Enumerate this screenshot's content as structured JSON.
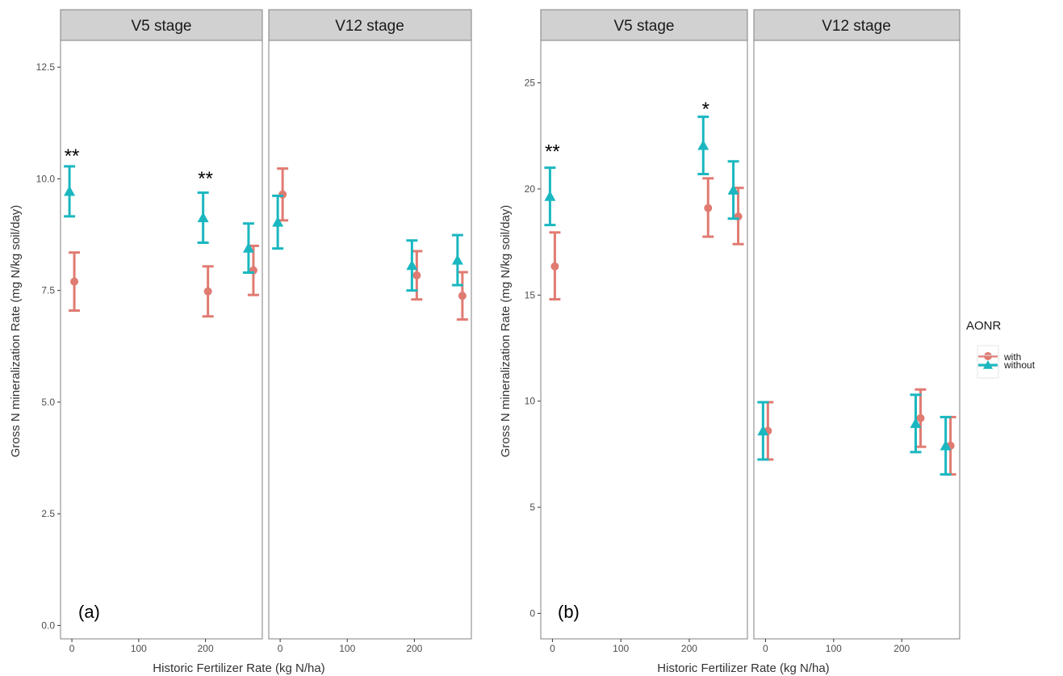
{
  "colors": {
    "with": "#e07b72",
    "without": "#1ab7c0",
    "strip": "#d1d1d1",
    "frame": "#808080"
  },
  "legend": {
    "title": "AONR",
    "entries": [
      {
        "key": "with",
        "label": "with",
        "marker": "circle"
      },
      {
        "key": "without",
        "label": "without",
        "marker": "triangle"
      }
    ]
  },
  "chart_data": [
    {
      "type": "scatter",
      "panel_label": "(a)",
      "xlabel": "Historic Fertilizer Rate (kg N/ha)",
      "ylabel": "Gross N mineralization Rate (mg N/kg soil/day)",
      "ylim": [
        -0.3,
        13.1
      ],
      "yticks": [
        "0.0",
        "2.5",
        "5.0",
        "7.5",
        "10.0",
        "12.5"
      ],
      "ytick_values": [
        0,
        2.5,
        5,
        7.5,
        10,
        12.5
      ],
      "xlim": [
        -17,
        285
      ],
      "xticks": [
        "0",
        "100",
        "200"
      ],
      "xtick_values": [
        0,
        100,
        200
      ],
      "facets": [
        {
          "label": "V5 stage",
          "series": [
            {
              "name": "with",
              "points": [
                {
                  "x": 0,
                  "y": 7.7,
                  "lo": 7.05,
                  "hi": 8.35
                },
                {
                  "x": 200,
                  "y": 7.48,
                  "lo": 6.92,
                  "hi": 8.04
                },
                {
                  "x": 268,
                  "y": 7.95,
                  "lo": 7.4,
                  "hi": 8.5
                }
              ]
            },
            {
              "name": "without",
              "points": [
                {
                  "x": 0,
                  "y": 9.72,
                  "lo": 9.16,
                  "hi": 10.28
                },
                {
                  "x": 200,
                  "y": 9.13,
                  "lo": 8.57,
                  "hi": 9.69
                },
                {
                  "x": 268,
                  "y": 8.45,
                  "lo": 7.9,
                  "hi": 9.0
                }
              ]
            }
          ],
          "annotations": [
            {
              "x": 0,
              "y": 10.62,
              "text": "**"
            },
            {
              "x": 200,
              "y": 10.12,
              "text": "**"
            }
          ]
        },
        {
          "label": "V12 stage",
          "series": [
            {
              "name": "with",
              "points": [
                {
                  "x": 0,
                  "y": 9.65,
                  "lo": 9.07,
                  "hi": 10.23
                },
                {
                  "x": 200,
                  "y": 7.84,
                  "lo": 7.3,
                  "hi": 8.38
                },
                {
                  "x": 268,
                  "y": 7.38,
                  "lo": 6.85,
                  "hi": 7.91
                }
              ]
            },
            {
              "name": "without",
              "points": [
                {
                  "x": 0,
                  "y": 9.03,
                  "lo": 8.44,
                  "hi": 9.62
                },
                {
                  "x": 200,
                  "y": 8.06,
                  "lo": 7.5,
                  "hi": 8.62
                },
                {
                  "x": 268,
                  "y": 8.18,
                  "lo": 7.62,
                  "hi": 8.74
                }
              ]
            }
          ],
          "annotations": []
        }
      ]
    },
    {
      "type": "scatter",
      "panel_label": "(b)",
      "xlabel": "Historic Fertilizer Rate (kg N/ha)",
      "ylabel": "Gross N mineralization Rate (mg N/kg soil/day)",
      "ylim": [
        -1.2,
        27.0
      ],
      "yticks": [
        "0",
        "5",
        "10",
        "15",
        "20",
        "25"
      ],
      "ytick_values": [
        0,
        5,
        10,
        15,
        20,
        25
      ],
      "xlim": [
        -17,
        285
      ],
      "xticks": [
        "0",
        "100",
        "200"
      ],
      "xtick_values": [
        0,
        100,
        200
      ],
      "facets": [
        {
          "label": "V5 stage",
          "series": [
            {
              "name": "with",
              "points": [
                {
                  "x": 0,
                  "y": 16.35,
                  "lo": 14.8,
                  "hi": 17.95
                },
                {
                  "x": 224,
                  "y": 19.1,
                  "lo": 17.75,
                  "hi": 20.5
                },
                {
                  "x": 268,
                  "y": 18.7,
                  "lo": 17.4,
                  "hi": 20.05
                }
              ]
            },
            {
              "name": "without",
              "points": [
                {
                  "x": 0,
                  "y": 19.65,
                  "lo": 18.3,
                  "hi": 21.0
                },
                {
                  "x": 224,
                  "y": 22.05,
                  "lo": 20.7,
                  "hi": 23.4
                },
                {
                  "x": 268,
                  "y": 19.95,
                  "lo": 18.6,
                  "hi": 21.3
                }
              ]
            }
          ],
          "annotations": [
            {
              "x": 0,
              "y": 22.0,
              "text": "**"
            },
            {
              "x": 224,
              "y": 24.0,
              "text": "*"
            }
          ]
        },
        {
          "label": "V12 stage",
          "series": [
            {
              "name": "with",
              "points": [
                {
                  "x": 0,
                  "y": 8.6,
                  "lo": 7.25,
                  "hi": 9.95
                },
                {
                  "x": 224,
                  "y": 9.2,
                  "lo": 7.85,
                  "hi": 10.55
                },
                {
                  "x": 268,
                  "y": 7.9,
                  "lo": 6.55,
                  "hi": 9.25
                }
              ]
            },
            {
              "name": "without",
              "points": [
                {
                  "x": 0,
                  "y": 8.6,
                  "lo": 7.25,
                  "hi": 9.95
                },
                {
                  "x": 224,
                  "y": 8.95,
                  "lo": 7.6,
                  "hi": 10.3
                },
                {
                  "x": 268,
                  "y": 7.9,
                  "lo": 6.55,
                  "hi": 9.25
                }
              ]
            }
          ],
          "annotations": []
        }
      ]
    }
  ]
}
